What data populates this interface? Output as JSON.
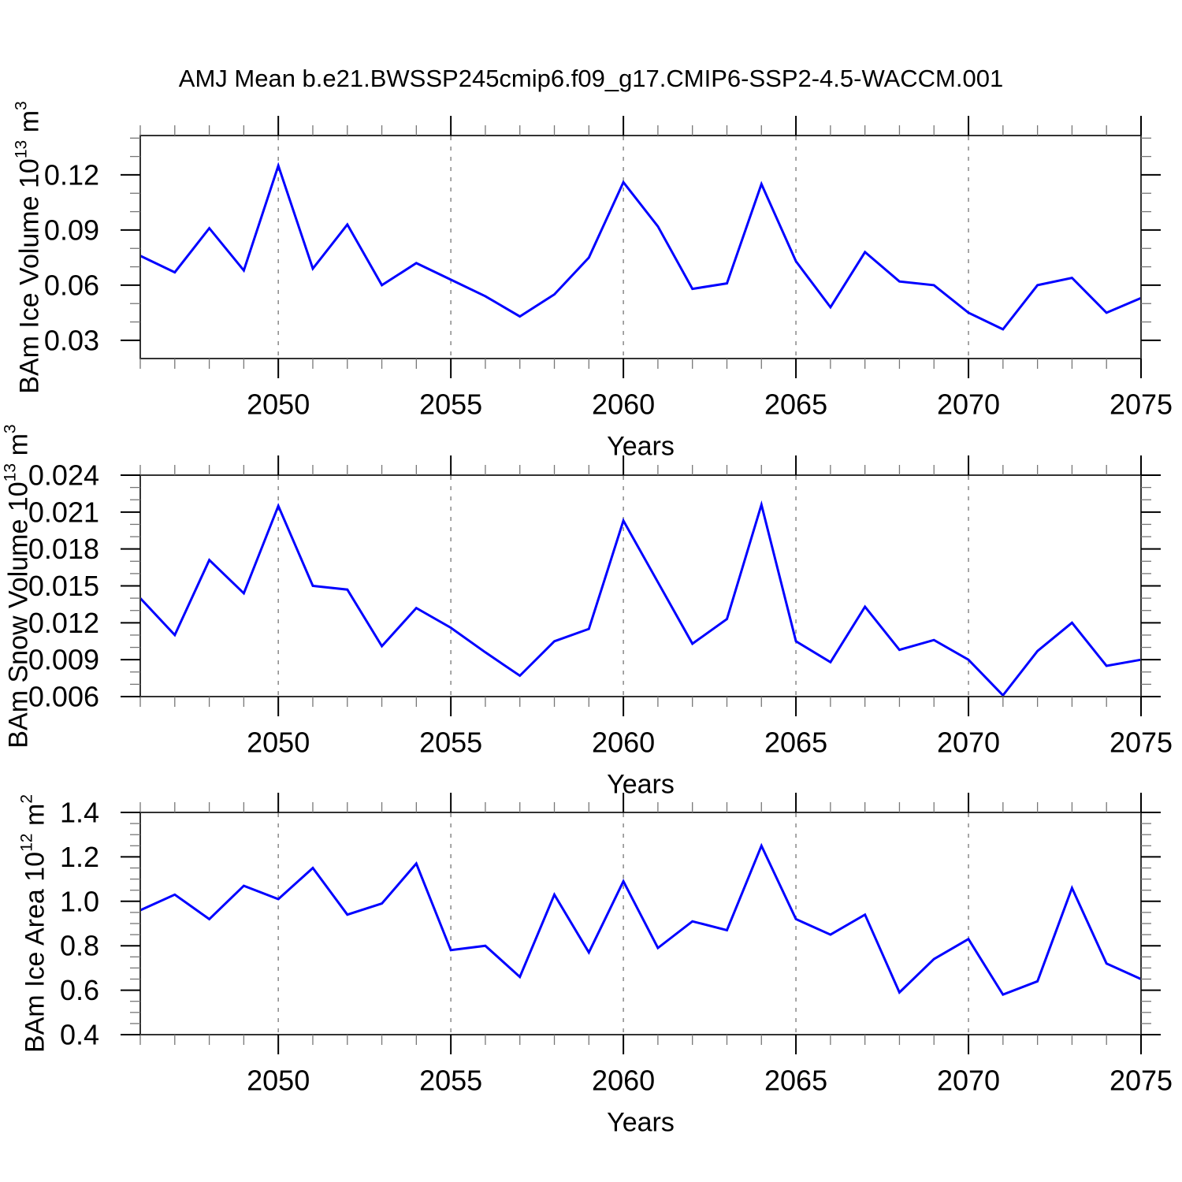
{
  "title": "AMJ Mean b.e21.BWSSP245cmip6.f09_g17.CMIP6-SSP2-4.5-WACCM.001",
  "line_color": "#0000ff",
  "grid_color": "#909090",
  "axis_color": "#333333",
  "chart_data": [
    {
      "type": "line",
      "ylabel_text": "BAm Ice Volume 10",
      "ylabel_exp": "13",
      "ylabel_unit": " m",
      "ylabel_unit_exp": "3",
      "xlabel": "Years",
      "x": [
        2046,
        2047,
        2048,
        2049,
        2050,
        2051,
        2052,
        2053,
        2054,
        2055,
        2056,
        2057,
        2058,
        2059,
        2060,
        2061,
        2062,
        2063,
        2064,
        2065,
        2066,
        2067,
        2068,
        2069,
        2070,
        2071,
        2072,
        2073,
        2074,
        2075
      ],
      "values": [
        0.076,
        0.067,
        0.091,
        0.068,
        0.125,
        0.069,
        0.093,
        0.06,
        0.072,
        0.063,
        0.054,
        0.043,
        0.055,
        0.075,
        0.116,
        0.092,
        0.058,
        0.061,
        0.115,
        0.073,
        0.048,
        0.078,
        0.062,
        0.06,
        0.045,
        0.036,
        0.06,
        0.064,
        0.045,
        0.053
      ],
      "xlim": [
        2046,
        2075
      ],
      "ylim": [
        0.0201,
        0.1414
      ],
      "yticks": [
        0.03,
        0.06,
        0.09,
        0.12
      ],
      "ytick_labels": [
        "0.03",
        "0.06",
        "0.09",
        "0.12"
      ],
      "ytick_minor_step": 0.01,
      "xticks": [
        2050,
        2055,
        2060,
        2065,
        2070,
        2075
      ],
      "xtick_labels": [
        "2050",
        "2055",
        "2060",
        "2065",
        "2070",
        "2075"
      ],
      "xgrid": [
        2050,
        2055,
        2060,
        2065,
        2070
      ]
    },
    {
      "type": "line",
      "ylabel_text": "BAm Snow Volume 10",
      "ylabel_exp": "13",
      "ylabel_unit": " m",
      "ylabel_unit_exp": "3",
      "xlabel": "Years",
      "x": [
        2046,
        2047,
        2048,
        2049,
        2050,
        2051,
        2052,
        2053,
        2054,
        2055,
        2056,
        2057,
        2058,
        2059,
        2060,
        2061,
        2062,
        2063,
        2064,
        2065,
        2066,
        2067,
        2068,
        2069,
        2070,
        2071,
        2072,
        2073,
        2074,
        2075
      ],
      "values": [
        0.014,
        0.011,
        0.0171,
        0.0144,
        0.0215,
        0.015,
        0.0147,
        0.0101,
        0.0132,
        0.0116,
        0.0096,
        0.0077,
        0.0105,
        0.0115,
        0.0203,
        0.0153,
        0.0103,
        0.0123,
        0.0216,
        0.0105,
        0.0088,
        0.0133,
        0.0098,
        0.0106,
        0.009,
        0.0061,
        0.0097,
        0.012,
        0.0085,
        0.009
      ],
      "xlim": [
        2046,
        2075
      ],
      "ylim": [
        0.006,
        0.024
      ],
      "yticks": [
        0.006,
        0.009,
        0.012,
        0.015,
        0.018,
        0.021,
        0.024
      ],
      "ytick_labels": [
        "0.006",
        "0.009",
        "0.012",
        "0.015",
        "0.018",
        "0.021",
        "0.024"
      ],
      "ytick_minor_step": 0.001,
      "xticks": [
        2050,
        2055,
        2060,
        2065,
        2070,
        2075
      ],
      "xtick_labels": [
        "2050",
        "2055",
        "2060",
        "2065",
        "2070",
        "2075"
      ],
      "xgrid": [
        2050,
        2055,
        2060,
        2065,
        2070
      ]
    },
    {
      "type": "line",
      "ylabel_text": "BAm Ice Area 10",
      "ylabel_exp": "12",
      "ylabel_unit": " m",
      "ylabel_unit_exp": "2",
      "xlabel": "Years",
      "x": [
        2046,
        2047,
        2048,
        2049,
        2050,
        2051,
        2052,
        2053,
        2054,
        2055,
        2056,
        2057,
        2058,
        2059,
        2060,
        2061,
        2062,
        2063,
        2064,
        2065,
        2066,
        2067,
        2068,
        2069,
        2070,
        2071,
        2072,
        2073,
        2074,
        2075
      ],
      "values": [
        0.96,
        1.03,
        0.92,
        1.07,
        1.01,
        1.15,
        0.94,
        0.99,
        1.17,
        0.78,
        0.8,
        0.66,
        1.03,
        0.77,
        1.09,
        0.79,
        0.91,
        0.87,
        1.25,
        0.92,
        0.85,
        0.94,
        0.59,
        0.74,
        0.83,
        0.58,
        0.64,
        1.06,
        0.72,
        0.65
      ],
      "xlim": [
        2046,
        2075
      ],
      "ylim": [
        0.4,
        1.4
      ],
      "yticks": [
        0.4,
        0.6,
        0.8,
        1.0,
        1.2,
        1.4
      ],
      "ytick_labels": [
        "0.4",
        "0.6",
        "0.8",
        "1.0",
        "1.2",
        "1.4"
      ],
      "ytick_minor_step": 0.05,
      "xticks": [
        2050,
        2055,
        2060,
        2065,
        2070,
        2075
      ],
      "xtick_labels": [
        "2050",
        "2055",
        "2060",
        "2065",
        "2070",
        "2075"
      ],
      "xgrid": [
        2050,
        2055,
        2060,
        2065,
        2070
      ]
    }
  ]
}
